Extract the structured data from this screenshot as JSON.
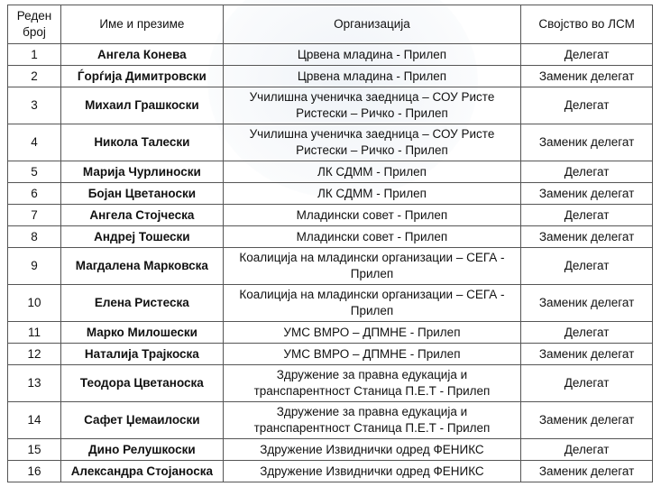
{
  "headers": {
    "no": "Реден број",
    "name": "Име и презиме",
    "org": "Организација",
    "role": "Својство во ЛСМ"
  },
  "rows": [
    {
      "no": "1",
      "name": "Ангела Конева",
      "org": "Црвена младина - Прилеп",
      "role": "Делегат"
    },
    {
      "no": "2",
      "name": "Ѓорѓија Димитровски",
      "org": "Црвена младина - Прилеп",
      "role": "Заменик делегат"
    },
    {
      "no": "3",
      "name": "Михаил Грашкоски",
      "org": "Училишна ученичка заедница – СОУ Ристе Ристески – Ричко - Прилеп",
      "role": "Делегат"
    },
    {
      "no": "4",
      "name": "Никола Талески",
      "org": "Училишна ученичка заедница – СОУ Ристе Ристески – Ричко - Прилеп",
      "role": "Заменик делегат"
    },
    {
      "no": "5",
      "name": "Марија Чурлиноски",
      "org": "ЛК СДММ - Прилеп",
      "role": "Делегат"
    },
    {
      "no": "6",
      "name": "Бојан Цветаноски",
      "org": "ЛК СДММ - Прилеп",
      "role": "Заменик делегат"
    },
    {
      "no": "7",
      "name": "Ангела Стојческа",
      "org": "Младински совет - Прилеп",
      "role": "Делегат"
    },
    {
      "no": "8",
      "name": "Андреј Тошески",
      "org": "Младински совет - Прилеп",
      "role": "Заменик делегат"
    },
    {
      "no": "9",
      "name": "Магдалена Марковска",
      "org": "Коалиција на младински организации – СЕГА - Прилеп",
      "role": "Делегат"
    },
    {
      "no": "10",
      "name": "Елена Ристеска",
      "org": "Коалиција на младински организации – СЕГА - Прилеп",
      "role": "Заменик делегат"
    },
    {
      "no": "11",
      "name": "Марко Милошески",
      "org": "УМС ВМРО – ДПМНЕ - Прилеп",
      "role": "Делегат"
    },
    {
      "no": "12",
      "name": "Наталија Трајкоска",
      "org": "УМС ВМРО – ДПМНЕ - Прилеп",
      "role": "Заменик делегат"
    },
    {
      "no": "13",
      "name": "Теодора Цветаноска",
      "org": "Здружение за правна едукација и транспарентност Станица П.Е.Т - Прилеп",
      "role": "Делегат"
    },
    {
      "no": "14",
      "name": "Сафет Џемаилоски",
      "org": "Здружение за правна едукација и транспарентност Станица П.Е.Т - Прилеп",
      "role": "Заменик делегат"
    },
    {
      "no": "15",
      "name": "Дино Релушкоски",
      "org": "Здружение Извиднички одред ФЕНИКС",
      "role": "Делегат"
    },
    {
      "no": "16",
      "name": "Александра Стојаноска",
      "org": "Здружение Извиднички одред ФЕНИКС",
      "role": "Заменик делегат"
    }
  ]
}
